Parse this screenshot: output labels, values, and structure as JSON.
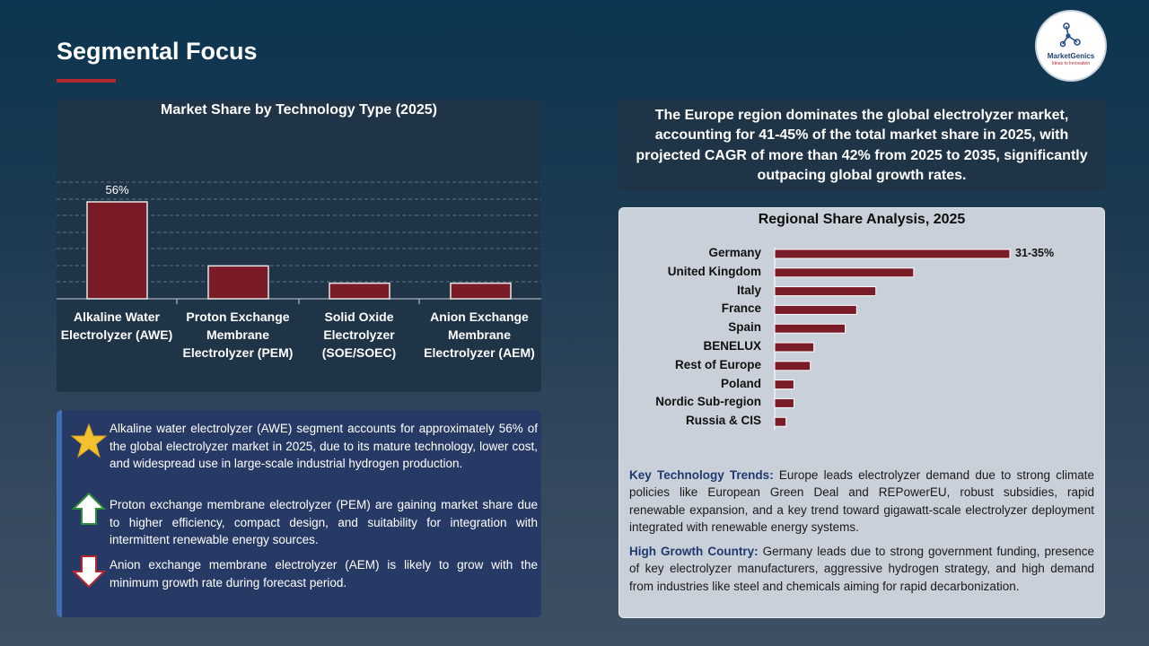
{
  "page": {
    "title": "Segmental Focus"
  },
  "logo": {
    "brand": "MarketGenics",
    "tagline": "Ideas to Innovation"
  },
  "colors": {
    "bar": "#7a1c27",
    "accent": "#b3282d",
    "gridline": "#5f7385"
  },
  "tech_chart": {
    "title": "Market Share by Technology Type (2025)",
    "label_awe": "56%"
  },
  "region_chart": {
    "title": "Regional Share Analysis, 2025",
    "label_germany": "31-35%"
  },
  "chart_data": [
    {
      "type": "bar",
      "title": "Market Share by Technology Type (2025)",
      "categories": [
        "Alkaline Water Electrolyzer (AWE)",
        "Proton Exchange Membrane Electrolyzer (PEM)",
        "Solid Oxide Electrolyzer (SOE/SOEC)",
        "Anion Exchange Membrane Electrolyzer (AEM)"
      ],
      "values": [
        56,
        19,
        9,
        9
      ],
      "data_labels": [
        "56%",
        "",
        "",
        ""
      ],
      "grid": true,
      "ylim": [
        0,
        70
      ]
    },
    {
      "type": "bar",
      "orientation": "horizontal",
      "title": "Regional Share Analysis, 2025",
      "categories": [
        "Germany",
        "United Kingdom",
        "Italy",
        "France",
        "Spain",
        "BENELUX",
        "Rest of Europe",
        "Poland",
        "Nordic Sub-region",
        "Russia & CIS"
      ],
      "values": [
        33,
        19.5,
        14.2,
        11.5,
        9.9,
        5.5,
        5,
        2.7,
        2.7,
        1.6
      ],
      "data_labels": [
        "31-35%",
        "",
        "",
        "",
        "",
        "",
        "",
        "",
        "",
        ""
      ],
      "xlim": [
        0,
        33
      ]
    }
  ],
  "bullets": [
    {
      "icon": "star-icon",
      "text": "Alkaline water electrolyzer (AWE) segment accounts for approximately 56% of the global electrolyzer market in 2025, due to its mature technology, lower cost, and widespread use in large-scale industrial hydrogen production."
    },
    {
      "icon": "arrow-up-icon",
      "text": "Proton exchange membrane electrolyzer (PEM) are gaining market share due to higher efficiency, compact design, and suitability for integration with intermittent renewable energy sources."
    },
    {
      "icon": "arrow-down-icon",
      "text": "Anion exchange membrane electrolyzer (AEM) is likely to grow with the minimum growth rate during forecast period."
    }
  ],
  "europe_summary": "The Europe region dominates the global electrolyzer market, accounting for 41-45% of the total market share in 2025, with projected CAGR of more than 42% from 2025 to 2035, significantly outpacing global growth rates.",
  "trends": {
    "heading": "Key Technology Trends:",
    "text": " Europe leads electrolyzer demand due to strong climate policies like European Green Deal and REPowerEU, robust subsidies, rapid renewable expansion, and a key trend toward gigawatt-scale electrolyzer deployment integrated with renewable energy systems."
  },
  "growth": {
    "heading": "High Growth Country:",
    "text": " Germany leads due to strong government funding, presence of key electrolyzer manufacturers, aggressive hydrogen strategy, and high demand from industries like steel and chemicals aiming for rapid decarbonization."
  }
}
